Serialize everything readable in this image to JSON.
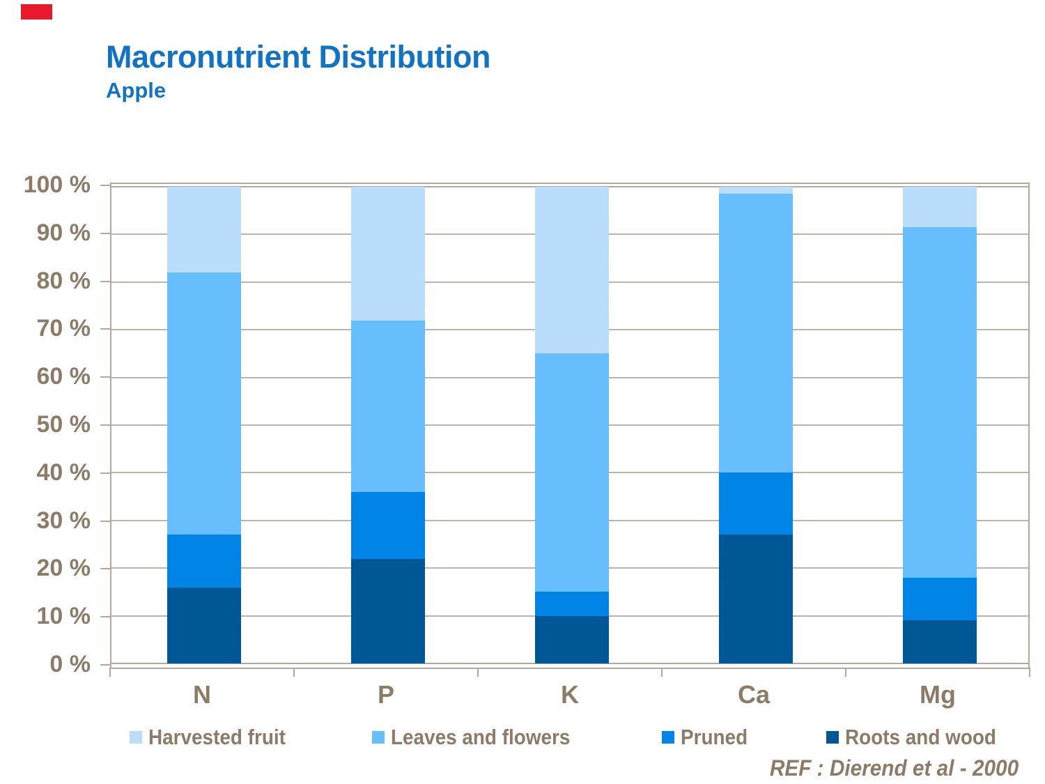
{
  "header": {
    "title": "Macronutrient Distribution",
    "subtitle": "Apple"
  },
  "logo": {
    "color": "#e8192c"
  },
  "theme": {
    "title_blue": "#1173c6",
    "text_brown": "#8c7b66",
    "axis_tan": "#b3a89b",
    "grid_tan": "#bdb3a6"
  },
  "footnote": {
    "ref": "REF :  Dierend et al - 2000"
  },
  "chart_data": {
    "type": "bar",
    "stacked": true,
    "title": "Macronutrient Distribution",
    "subtitle": "Apple",
    "categories": [
      "N",
      "P",
      "K",
      "Ca",
      "Mg"
    ],
    "series": [
      {
        "name": "Roots and wood",
        "color": "#005796",
        "values": [
          16,
          22,
          10,
          27,
          9
        ]
      },
      {
        "name": "Pruned",
        "color": "#0085e6",
        "values": [
          11,
          14,
          5,
          13,
          9
        ]
      },
      {
        "name": "Leaves and flowers",
        "color": "#66befc",
        "values": [
          55,
          36,
          50,
          58.5,
          73.5
        ]
      },
      {
        "name": "Harvested fruit",
        "color": "#b9ddfa",
        "values": [
          18,
          28,
          35,
          1.5,
          8.5
        ]
      }
    ],
    "legend_order": [
      "Harvested fruit",
      "Leaves and flowers",
      "Pruned",
      "Roots and wood"
    ],
    "legend_position": "bottom",
    "y_ticks": [
      "0 %",
      "10 %",
      "20 %",
      "30 %",
      "40 %",
      "50 %",
      "60 %",
      "70 %",
      "80 %",
      "90 %",
      "100 %"
    ],
    "ylim": [
      0,
      100
    ],
    "grid": true,
    "xlabel": "",
    "ylabel": ""
  }
}
